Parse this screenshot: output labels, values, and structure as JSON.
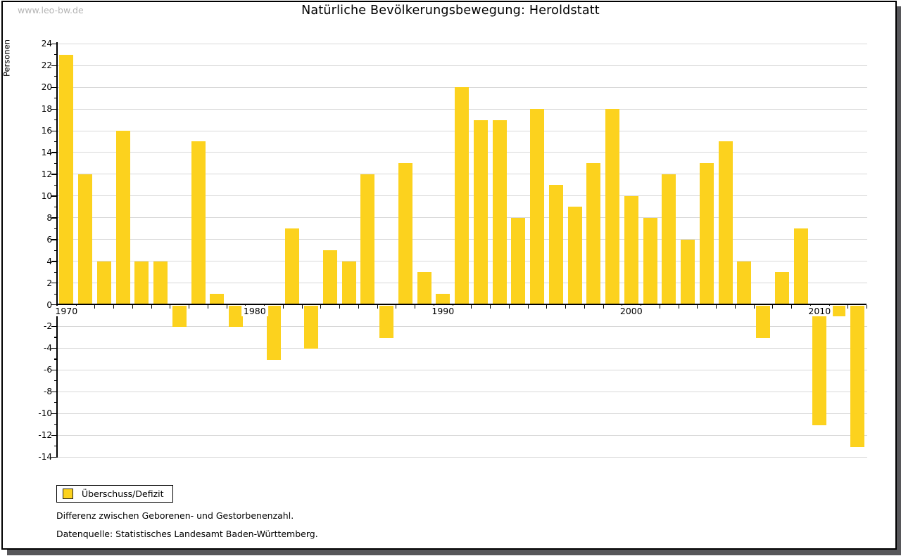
{
  "watermark": "www.leo-bw.de",
  "title": "Natürliche Bevölkerungsbewegung: Heroldstatt",
  "legend": {
    "label": "Überschuss/Defizit"
  },
  "notes": [
    "Differenz zwischen Geborenen- und Gestorbenenzahl.",
    "Datenquelle: Statistisches Landesamt Baden-Württemberg."
  ],
  "colors": {
    "bar": "#FCD21E",
    "grid": "#d8d8d8",
    "axis": "#000000",
    "watermark": "#b4b4b4",
    "frame_shadow": "#57575a",
    "label_background": "#ffffff"
  },
  "chart_data": {
    "type": "bar",
    "title": "Natürliche Bevölkerungsbewegung: Heroldstatt",
    "xlabel": "",
    "ylabel": "Personen",
    "series_name": "Überschuss/Defizit",
    "x": [
      1970,
      1971,
      1972,
      1973,
      1974,
      1975,
      1976,
      1977,
      1978,
      1979,
      1980,
      1981,
      1982,
      1983,
      1984,
      1985,
      1986,
      1987,
      1988,
      1989,
      1990,
      1991,
      1992,
      1993,
      1994,
      1995,
      1996,
      1997,
      1998,
      1999,
      2000,
      2001,
      2002,
      2003,
      2004,
      2005,
      2006,
      2007,
      2008,
      2009,
      2010,
      2011,
      2012
    ],
    "values": [
      23,
      12,
      4,
      16,
      4,
      4,
      -2,
      15,
      1,
      -2,
      0,
      -5,
      7,
      -4,
      5,
      4,
      12,
      -3,
      13,
      3,
      1,
      20,
      17,
      17,
      8,
      18,
      11,
      9,
      13,
      18,
      10,
      8,
      12,
      6,
      13,
      15,
      4,
      -3,
      3,
      7,
      -11,
      -1,
      -13
    ],
    "ylim": [
      -14,
      24
    ],
    "ytick_step": 2,
    "xtick_labels": [
      1970,
      1980,
      1990,
      2000,
      2010
    ],
    "grid": true,
    "legend_position": "bottom-left"
  }
}
